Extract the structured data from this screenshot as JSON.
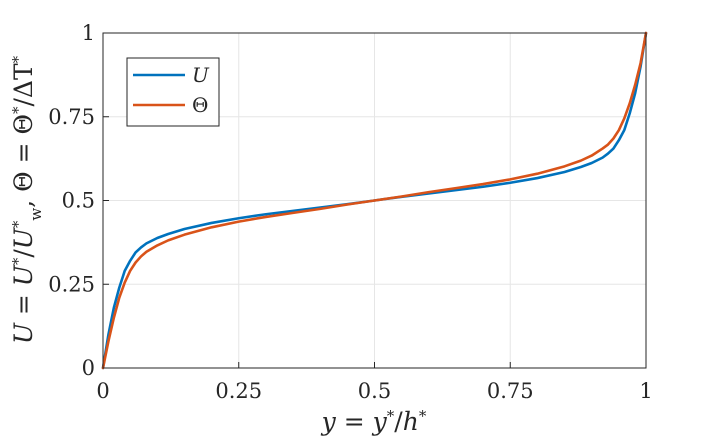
{
  "chart_data": {
    "type": "line",
    "xlabel": "y = y*/h*",
    "ylabel": "U = U*/U*w,  Θ = Θ*/ΔT*",
    "xlim": [
      0,
      1
    ],
    "ylim": [
      0,
      1
    ],
    "xticks": [
      "0",
      "0.25",
      "0.5",
      "0.75",
      "1"
    ],
    "yticks": [
      "0",
      "0.25",
      "0.5",
      "0.75",
      "1"
    ],
    "grid": true,
    "legend_position": "top-left",
    "x": [
      0,
      0.01,
      0.02,
      0.03,
      0.04,
      0.05,
      0.06,
      0.07,
      0.08,
      0.1,
      0.12,
      0.15,
      0.2,
      0.25,
      0.3,
      0.35,
      0.4,
      0.45,
      0.5,
      0.55,
      0.6,
      0.65,
      0.7,
      0.75,
      0.8,
      0.85,
      0.88,
      0.9,
      0.92,
      0.93,
      0.94,
      0.95,
      0.96,
      0.97,
      0.98,
      0.99,
      1.0
    ],
    "series": [
      {
        "name": "U",
        "color": "#0072BD",
        "values": [
          0,
          0.1,
          0.18,
          0.24,
          0.29,
          0.32,
          0.345,
          0.36,
          0.372,
          0.388,
          0.4,
          0.415,
          0.433,
          0.447,
          0.459,
          0.469,
          0.479,
          0.489,
          0.5,
          0.511,
          0.521,
          0.531,
          0.541,
          0.553,
          0.567,
          0.585,
          0.6,
          0.612,
          0.628,
          0.64,
          0.655,
          0.68,
          0.71,
          0.76,
          0.82,
          0.9,
          1.0
        ]
      },
      {
        "name": "Θ",
        "color": "#D95319",
        "values": [
          0,
          0.08,
          0.15,
          0.21,
          0.255,
          0.29,
          0.315,
          0.333,
          0.347,
          0.366,
          0.381,
          0.398,
          0.42,
          0.437,
          0.451,
          0.463,
          0.475,
          0.488,
          0.5,
          0.512,
          0.525,
          0.537,
          0.549,
          0.563,
          0.58,
          0.602,
          0.619,
          0.634,
          0.655,
          0.667,
          0.685,
          0.71,
          0.745,
          0.79,
          0.845,
          0.91,
          1.0
        ]
      }
    ]
  }
}
